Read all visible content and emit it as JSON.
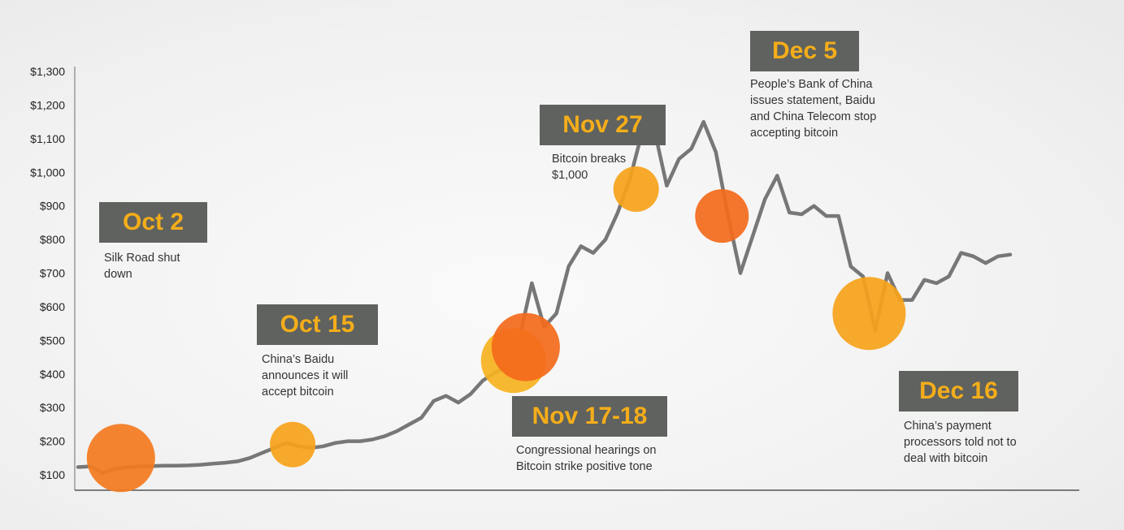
{
  "chart_data": {
    "type": "line",
    "title": "",
    "xlabel": "",
    "ylabel": "",
    "ylim": [
      80,
      1300
    ],
    "yticks": [
      100,
      200,
      300,
      400,
      500,
      600,
      700,
      800,
      900,
      1000,
      1100,
      1200,
      1300
    ],
    "ytick_labels": [
      "$100",
      "$200",
      "$300",
      "$400",
      "$500",
      "$600",
      "$700",
      "$800",
      "$900",
      "$1,000",
      "$1,100",
      "$1,200",
      "$1,300"
    ],
    "series": [
      {
        "name": "",
        "color": "#777777",
        "x": [
          0,
          1,
          2,
          3,
          4,
          5,
          6,
          7,
          8,
          9,
          10,
          11,
          12,
          13,
          14,
          15,
          16,
          17,
          18,
          19,
          20,
          21,
          22,
          23,
          24,
          25,
          26,
          27,
          28,
          29,
          30,
          31,
          32,
          33,
          34,
          35,
          36,
          37,
          38,
          39,
          40,
          41,
          42,
          43,
          44,
          45,
          46,
          47,
          48,
          49,
          50,
          51,
          52,
          53,
          54,
          55,
          56,
          57,
          58,
          59,
          60,
          61,
          62,
          63,
          64,
          65,
          66,
          67,
          68,
          69,
          70,
          71,
          72,
          73,
          74,
          75,
          76
        ],
        "y": [
          123,
          125,
          105,
          118,
          122,
          125,
          126,
          127,
          127,
          128,
          130,
          133,
          136,
          140,
          150,
          165,
          180,
          195,
          185,
          180,
          185,
          195,
          200,
          200,
          205,
          215,
          230,
          250,
          270,
          320,
          335,
          315,
          340,
          380,
          405,
          420,
          510,
          670,
          540,
          580,
          720,
          780,
          760,
          800,
          880,
          980,
          1120,
          1125,
          960,
          1040,
          1070,
          1150,
          1060,
          870,
          700,
          810,
          920,
          990,
          880,
          875,
          900,
          870,
          870,
          720,
          690,
          530,
          700,
          620,
          620,
          680,
          670,
          690,
          760,
          750,
          730,
          750,
          755
        ]
      }
    ],
    "annotations": [
      {
        "title": "Oct 2",
        "text_lines": [
          "Silk Road shut",
          "down"
        ],
        "x": 3.5,
        "y": 150,
        "color": "#f47b20",
        "size": 42
      },
      {
        "title": "Oct 15",
        "text_lines": [
          "China’s Baidu",
          "announces it will",
          "accept bitcoin"
        ],
        "x": 17.5,
        "y": 190,
        "color": "#f6a21c",
        "size": 28
      },
      {
        "title": "Nov 17-18",
        "text_lines": [
          "Congressional hearings on",
          "Bitcoin strike positive tone"
        ],
        "x": 35.5,
        "y": 440,
        "color": "#f6b321",
        "size": 40
      },
      {
        "title": "Nov 27",
        "text_lines": [
          "Bitcoin breaks",
          "$1,000"
        ],
        "x": 36.5,
        "y": 480,
        "color": "#f36b1c",
        "size": 42
      },
      {
        "title": "",
        "text_lines": [],
        "x": 45.5,
        "y": 950,
        "color": "#f6a21c",
        "size": 28
      },
      {
        "title": "Dec 5",
        "text_lines": [
          "People’s Bank of China",
          "issues statement, Baidu",
          "and China Telecom stop",
          "accepting bitcoin"
        ],
        "x": 52.5,
        "y": 870,
        "color": "#f36b1c",
        "size": 33
      },
      {
        "title": "Dec 16",
        "text_lines": [
          "China’s payment",
          "processors told not to",
          "deal with bitcoin"
        ],
        "x": 64.5,
        "y": 580,
        "color": "#f6a21c",
        "size": 45
      }
    ]
  }
}
